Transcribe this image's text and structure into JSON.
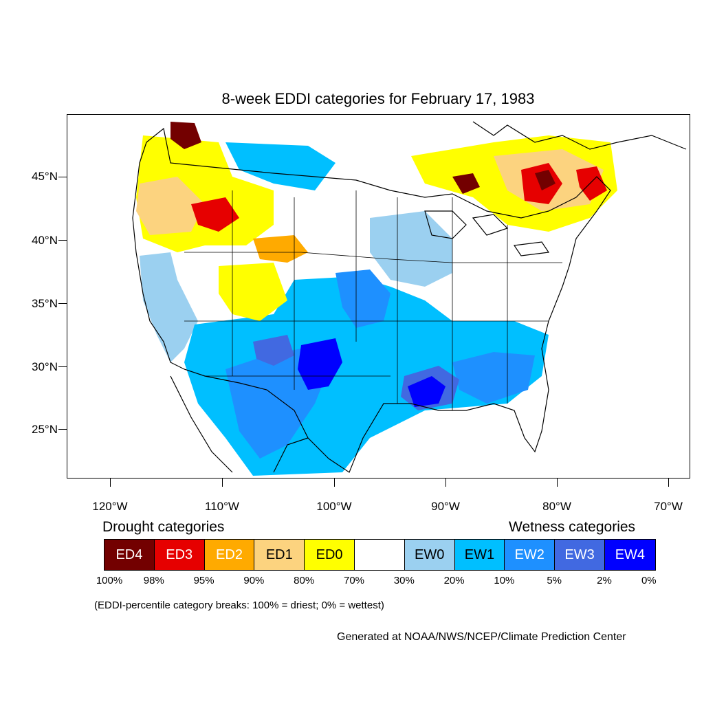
{
  "title": "8-week EDDI categories for February 17, 1983",
  "latitude_labels": [
    "45°N",
    "40°N",
    "35°N",
    "30°N",
    "25°N"
  ],
  "longitude_labels": [
    "120°W",
    "110°W",
    "100°W",
    "90°W",
    "80°W",
    "70°W"
  ],
  "legend": {
    "drought_heading": "Drought categories",
    "wetness_heading": "Wetness categories",
    "categories": [
      {
        "label": "ED4",
        "color": "#730000",
        "text_color": "#ffffff"
      },
      {
        "label": "ED3",
        "color": "#e60000",
        "text_color": "#ffffff"
      },
      {
        "label": "ED2",
        "color": "#ffaa00",
        "text_color": "#ffffff"
      },
      {
        "label": "ED1",
        "color": "#fcd37f",
        "text_color": "#000000"
      },
      {
        "label": "ED0",
        "color": "#ffff00",
        "text_color": "#000000"
      },
      {
        "label": "",
        "color": "#ffffff",
        "text_color": "#000000"
      },
      {
        "label": "EW0",
        "color": "#9bd0f0",
        "text_color": "#000000"
      },
      {
        "label": "EW1",
        "color": "#00bfff",
        "text_color": "#000000"
      },
      {
        "label": "EW2",
        "color": "#1e90ff",
        "text_color": "#ffffff"
      },
      {
        "label": "EW3",
        "color": "#4169e1",
        "text_color": "#ffffff"
      },
      {
        "label": "EW4",
        "color": "#0000ff",
        "text_color": "#ffffff"
      }
    ],
    "breaks": [
      "100%",
      "98%",
      "95%",
      "90%",
      "80%",
      "70%",
      "30%",
      "20%",
      "10%",
      "5%",
      "2%",
      "0%"
    ]
  },
  "note": "(EDDI-percentile category breaks: 100% = driest; 0% = wettest)",
  "credit": "Generated at NOAA/NWS/NCEP/Climate Prediction Center"
}
